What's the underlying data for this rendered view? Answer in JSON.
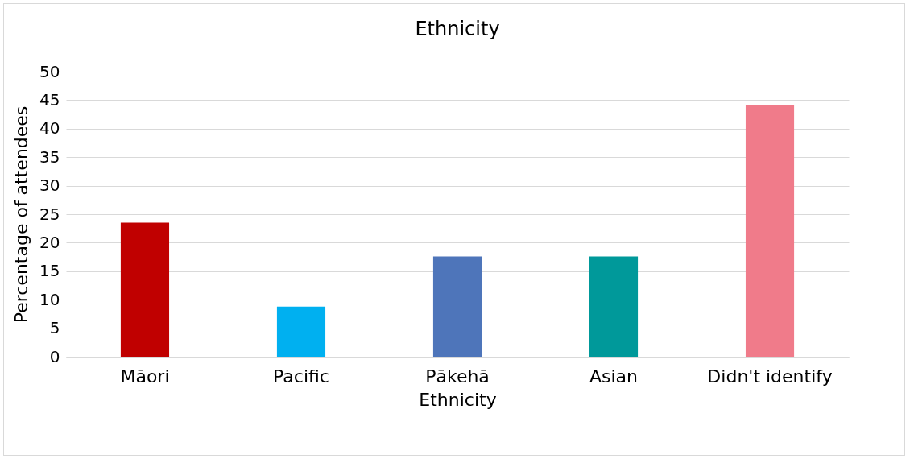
{
  "chart_data": {
    "type": "bar",
    "title": "Ethnicity",
    "xlabel": "Ethnicity",
    "ylabel": "Percentage of attendees",
    "categories": [
      "Māori",
      "Pacific",
      "Pākehā",
      "Asian",
      "Didn't identify"
    ],
    "values": [
      23.5,
      8.8,
      17.6,
      17.6,
      44.1
    ],
    "colors": [
      "#c00000",
      "#00b0f0",
      "#4e75ba",
      "#00999a",
      "#f07b8a"
    ],
    "ylim": [
      0,
      50
    ],
    "yticks": [
      0,
      5,
      10,
      15,
      20,
      25,
      30,
      35,
      40,
      45,
      50
    ],
    "grid": "y"
  }
}
